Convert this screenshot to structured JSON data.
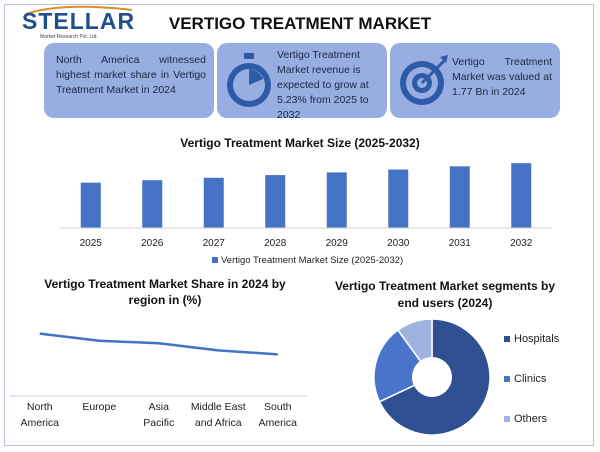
{
  "logo": {
    "text": "STELLAR",
    "subtitle": "Market Research Pvt. Ltd."
  },
  "header": {
    "title": "Vertigo Treatment Market"
  },
  "cards": [
    {
      "text": "North America witnessed highest market share in Vertigo Treatment Market in 2024"
    },
    {
      "text": "Vertigo Treatment Market revenue is expected to grow at 5.23% from 2025 to 2032",
      "icon": "stopwatch-icon"
    },
    {
      "text": "Vertigo Treatment Market was valued at 1.77 Bn in 2024",
      "icon": "target-icon"
    }
  ],
  "colors": {
    "bar": "#4472c4",
    "card": "#98aee3",
    "pie": [
      "#2e4f92",
      "#4a74c9",
      "#9fb2e0"
    ]
  },
  "chart_data": [
    {
      "type": "bar",
      "title": "Vertigo Treatment Market Size (2025-2032)",
      "categories": [
        "2025",
        "2026",
        "2027",
        "2028",
        "2029",
        "2030",
        "2031",
        "2032"
      ],
      "series": [
        {
          "name": "Vertigo Treatment Market Size (2025-2032)",
          "values": [
            1.86,
            1.96,
            2.06,
            2.17,
            2.28,
            2.4,
            2.53,
            2.66
          ]
        }
      ],
      "ylim": [
        0,
        3.2
      ],
      "legend": "bottom",
      "grid": false
    },
    {
      "type": "line",
      "title": "Vertigo Treatment Market Share in 2024 by region in (%)",
      "categories": [
        "North America",
        "Europe",
        "Asia Pacific",
        "Middle East and Africa",
        "South America"
      ],
      "values": [
        38,
        29,
        26,
        17,
        12
      ],
      "ylim": [
        -40,
        80
      ],
      "grid": false
    },
    {
      "type": "pie",
      "title": "Vertigo Treatment Market segments by end users (2024)",
      "labels": [
        "Hospitals",
        "Clinics",
        "Others"
      ],
      "values": [
        68,
        22,
        10
      ],
      "donut": true,
      "legend": "right"
    }
  ]
}
